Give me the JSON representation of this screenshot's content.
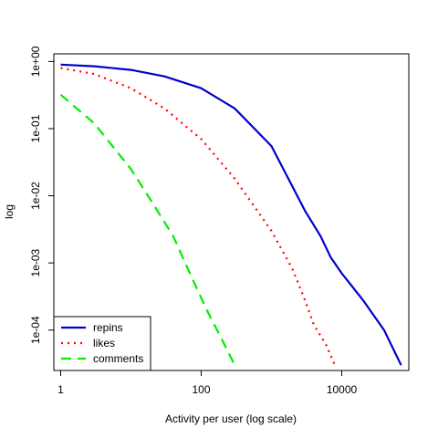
{
  "chart_data": {
    "type": "line",
    "title": "",
    "xlabel": "Activity per user (log scale)",
    "ylabel": "log",
    "x_scale": "log10",
    "y_scale": "log10",
    "xlim": [
      0.8,
      90000
    ],
    "ylim": [
      2.5e-05,
      1.3
    ],
    "x_ticks": [
      1,
      100,
      10000
    ],
    "x_tick_labels": [
      "1",
      "100",
      "10000"
    ],
    "y_ticks": [
      0.0001,
      0.001,
      0.01,
      0.1,
      1
    ],
    "y_tick_labels": [
      "1e-04",
      "1e-03",
      "1e-02",
      "1e-01",
      "1e+00"
    ],
    "grid": false,
    "legend_position": "bottom-left",
    "series": [
      {
        "name": "repins",
        "color": "#0000cc",
        "dash": "solid",
        "x": [
          1,
          3,
          10,
          30,
          100,
          300,
          1000,
          3000,
          5000,
          7000,
          10000,
          20000,
          40000,
          70000
        ],
        "y": [
          0.9,
          0.85,
          0.75,
          0.6,
          0.4,
          0.2,
          0.055,
          0.006,
          0.0025,
          0.0012,
          0.0007,
          0.00028,
          0.0001,
          3e-05
        ]
      },
      {
        "name": "likes",
        "color": "#ff0000",
        "dash": "dotted",
        "x": [
          1,
          3,
          10,
          30,
          100,
          300,
          1000,
          2000,
          3000,
          4000,
          6000,
          8000
        ],
        "y": [
          0.8,
          0.65,
          0.4,
          0.2,
          0.07,
          0.018,
          0.003,
          0.0008,
          0.00028,
          0.00012,
          6e-05,
          3e-05
        ]
      },
      {
        "name": "comments",
        "color": "#00ee00",
        "dash": "dashed",
        "x": [
          1,
          3,
          10,
          20,
          40,
          80,
          120,
          200,
          300
        ],
        "y": [
          0.32,
          0.12,
          0.025,
          0.008,
          0.0025,
          0.0005,
          0.0002,
          7e-05,
          3e-05
        ]
      }
    ]
  }
}
